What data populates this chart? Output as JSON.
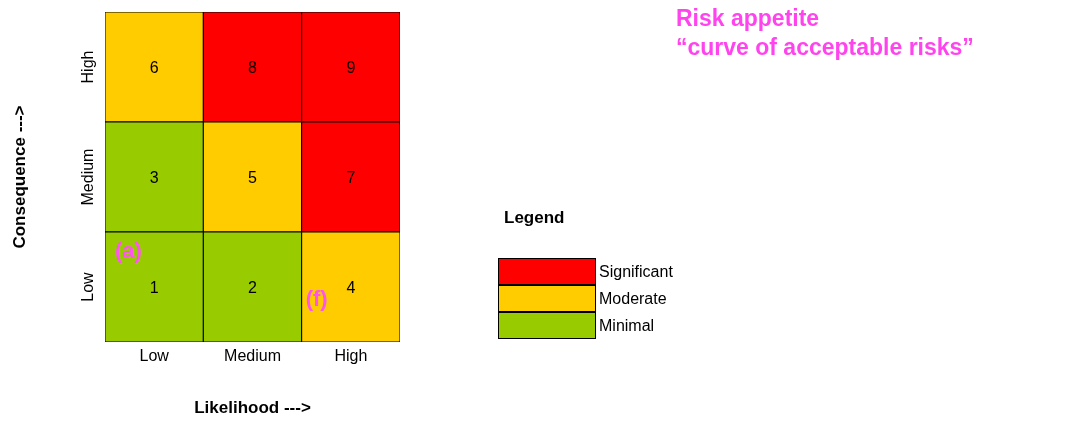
{
  "chart_data": {
    "type": "heatmap",
    "title": "Risk appetite\n“curve of acceptable risks”",
    "xlabel": "Likelihood --->",
    "ylabel": "Consequence --->",
    "legend_title": "Legend",
    "categories": [
      "Low",
      "Medium",
      "High"
    ],
    "y_categories": [
      "High",
      "Medium",
      "Low"
    ],
    "cells": [
      [
        6,
        8,
        9
      ],
      [
        3,
        5,
        7
      ],
      [
        1,
        2,
        4
      ]
    ],
    "data_labels": true,
    "colors": [
      [
        "#ffcc00",
        "#ff0000",
        "#ff0000"
      ],
      [
        "#99cc00",
        "#ffcc00",
        "#ff0000"
      ],
      [
        "#99cc00",
        "#99cc00",
        "#ffcc00"
      ]
    ],
    "annotations": [
      "(a)",
      "(f)",
      "Significant",
      "Moderate",
      "Minimal"
    ]
  }
}
